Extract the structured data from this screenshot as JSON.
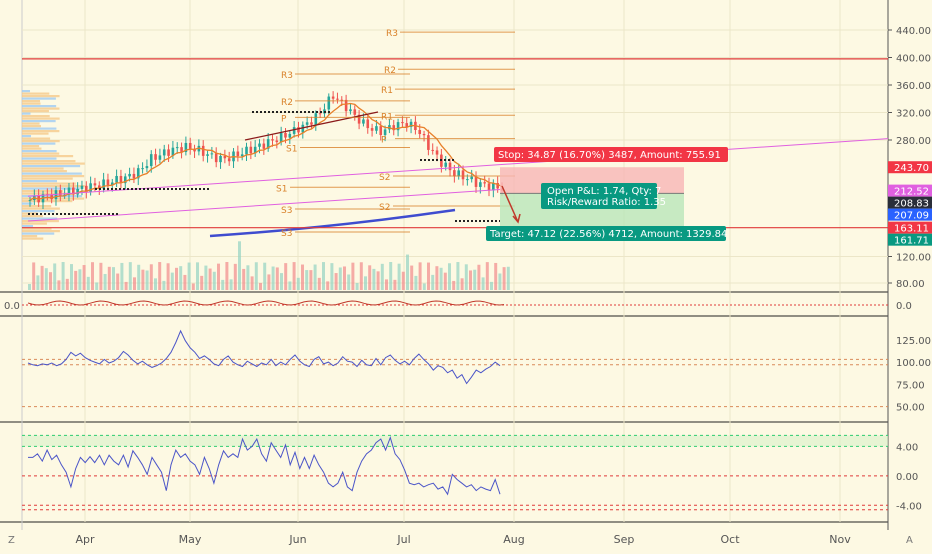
{
  "colors": {
    "background": "#fdf9e3",
    "grid": "#ece6c8",
    "axis_text": "#555555",
    "candle_up": "#26a69a",
    "candle_down": "#ef5350",
    "pivot": "#d9822b",
    "ma": "#e8802a",
    "trend": "#e060e0",
    "channel": "#3f4ccf",
    "indicator": "#4b55c8",
    "stop_fill": "#f8b5b5",
    "target_fill": "#b9e6b9",
    "stop_label": "#f23645",
    "target_label": "#089981",
    "dark_label": "#2a2e39",
    "blue_label": "#2962ff"
  },
  "chart_data": [
    {
      "type": "candlestick",
      "name": "price",
      "x_labels": [
        "Apr",
        "May",
        "Jun",
        "Jul",
        "Aug",
        "Sep",
        "Oct",
        "Nov"
      ],
      "y_ticks": [
        "440.00",
        "400.00",
        "360.00",
        "320.00",
        "280.00",
        "120.00",
        "80.00"
      ],
      "ylim": [
        60,
        460
      ],
      "close_path": [
        200,
        204,
        207,
        210,
        214,
        218,
        221,
        226,
        230,
        238,
        255,
        262,
        268,
        271,
        266,
        258,
        254,
        260,
        266,
        272,
        279,
        286,
        295,
        304,
        320,
        345,
        330,
        312,
        298,
        292,
        300,
        305,
        296,
        270,
        250,
        236,
        230,
        222,
        218,
        216
      ],
      "pivot_levels": [
        {
          "label": "R3",
          "value": 437
        },
        {
          "label": "R2",
          "value": 383
        },
        {
          "label": "R3",
          "value": 376
        },
        {
          "label": "R1",
          "value": 354
        },
        {
          "label": "R2",
          "value": 337
        },
        {
          "label": "R1",
          "value": 316
        },
        {
          "label": "P",
          "value": 313
        },
        {
          "label": "P",
          "value": 282
        },
        {
          "label": "S1",
          "value": 270
        },
        {
          "label": "S2",
          "value": 232
        },
        {
          "label": "S1",
          "value": 217
        },
        {
          "label": "S2",
          "value": 192
        },
        {
          "label": "S3",
          "value": 188
        },
        {
          "label": "S3",
          "value": 157
        }
      ],
      "horizontal_lines": [
        {
          "name": "resistance",
          "value": 398,
          "color": "#e03a3a"
        },
        {
          "name": "support",
          "value": 163.11,
          "color": "#e03a3a"
        }
      ],
      "price_labels": [
        {
          "text": "243.70",
          "value": 243.7,
          "color": "#f23645"
        },
        {
          "text": "212.52",
          "value": 212.52,
          "color": "#e060e0"
        },
        {
          "text": "208.83",
          "value": 208.83,
          "color": "#2a2e39"
        },
        {
          "text": "207.09",
          "value": 207.09,
          "color": "#2962ff"
        },
        {
          "text": "163.11",
          "value": 163.11,
          "color": "#f23645"
        },
        {
          "text": "161.71",
          "value": 161.71,
          "color": "#089981"
        }
      ],
      "position": {
        "stop_text": "Stop: 34.87 (16.70%) 3487, Amount: 755.91",
        "pnl_text": "Open P&L: 1.74, Qty: 7",
        "ratio_text": "Risk/Reward Ratio: 1.35",
        "target_text": "Target: 47.12 (22.56%) 4712, Amount: 1329.84",
        "entry": 208.83,
        "stop": 243.7,
        "target": 161.71
      }
    },
    {
      "type": "line",
      "name": "oscillator-1",
      "y_ticks": [
        "0.0"
      ],
      "left_label": "0.0"
    },
    {
      "type": "line",
      "name": "oscillator-2",
      "y_ticks": [
        "125.00",
        "100.00",
        "75.00",
        "50.00"
      ],
      "ylim": [
        35,
        145
      ],
      "levels": [
        103,
        97,
        50
      ],
      "values": [
        99,
        97,
        96,
        98,
        97,
        99,
        96,
        98,
        103,
        111,
        107,
        110,
        105,
        102,
        100,
        98,
        103,
        99,
        101,
        105,
        112,
        108,
        102,
        98,
        101,
        97,
        94,
        96,
        99,
        104,
        111,
        122,
        135,
        124,
        116,
        111,
        104,
        107,
        103,
        98,
        96,
        103,
        107,
        100,
        97,
        95,
        101,
        98,
        95,
        99,
        97,
        103,
        96,
        100,
        97,
        103,
        108,
        101,
        97,
        95,
        103,
        106,
        98,
        100,
        96,
        99,
        106,
        101,
        100,
        95,
        102,
        97,
        96,
        104,
        97,
        105,
        108,
        102,
        98,
        101,
        97,
        104,
        109,
        103,
        98,
        91,
        96,
        94,
        88,
        91,
        82,
        86,
        76,
        83,
        91,
        88,
        92,
        95,
        100,
        96
      ]
    },
    {
      "type": "line",
      "name": "oscillator-3",
      "y_ticks": [
        "4.00",
        "0.00",
        "-4.00"
      ],
      "ylim": [
        -6,
        6.5
      ],
      "levels": [
        5.5,
        4.0,
        0.0,
        -4.0,
        -4.6
      ],
      "values": [
        2.5,
        2.5,
        3.0,
        2.0,
        3.5,
        2.2,
        2.8,
        1.5,
        0.5,
        -1.5,
        1.0,
        2.5,
        1.8,
        2.6,
        1.8,
        2.8,
        1.5,
        2.8,
        2.0,
        1.5,
        2.8,
        1.2,
        3.4,
        2.5,
        1.5,
        0.2,
        2.5,
        1.5,
        0.5,
        -2.0,
        1.5,
        3.5,
        2.5,
        3.0,
        2.0,
        1.5,
        0.2,
        2.5,
        1.0,
        -1.0,
        1.5,
        3.4,
        2.5,
        3.0,
        2.5,
        5.0,
        3.5,
        4.0,
        5.0,
        3.0,
        2.0,
        4.5,
        3.5,
        2.5,
        4.2,
        1.5,
        3.2,
        1.0,
        2.5,
        1.0,
        2.8,
        1.5,
        0.5,
        -1.0,
        -1.5,
        -1.0,
        0.5,
        -1.5,
        -2.0,
        0.5,
        2.0,
        3.0,
        3.5,
        4.5,
        5.0,
        3.5,
        5.2,
        3.0,
        2.2,
        0.8,
        -1.0,
        -1.2,
        -1.0,
        -1.5,
        -1.2,
        -1.0,
        -1.8,
        -1.5,
        -2.5,
        0.2,
        -0.5,
        -1.0,
        -1.5,
        -1.2,
        -2.0,
        -1.5,
        -1.8,
        -2.0,
        -0.5,
        -2.5
      ]
    }
  ],
  "toolbar": {
    "left_icon": "Z",
    "right_icon": "A"
  }
}
